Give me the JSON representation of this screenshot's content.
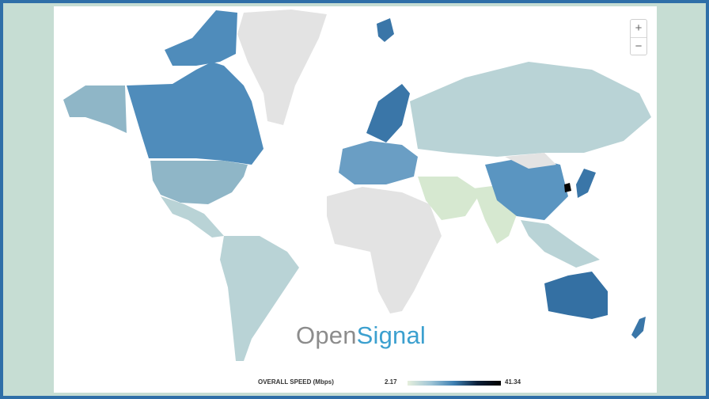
{
  "logo": {
    "part1": "Open",
    "part2": "Signal"
  },
  "zoom": {
    "in_label": "+",
    "out_label": "−"
  },
  "legend": {
    "title": "OVERALL SPEED (Mbps)",
    "min": "2.17",
    "max": "41.34",
    "low_color": "#e6efdc",
    "high_color": "#000000"
  },
  "colors": {
    "no_data": "#e3e3e3",
    "high": "#3a76a8",
    "mid": "#8fb6c7",
    "low": "#d6e8d0"
  }
}
